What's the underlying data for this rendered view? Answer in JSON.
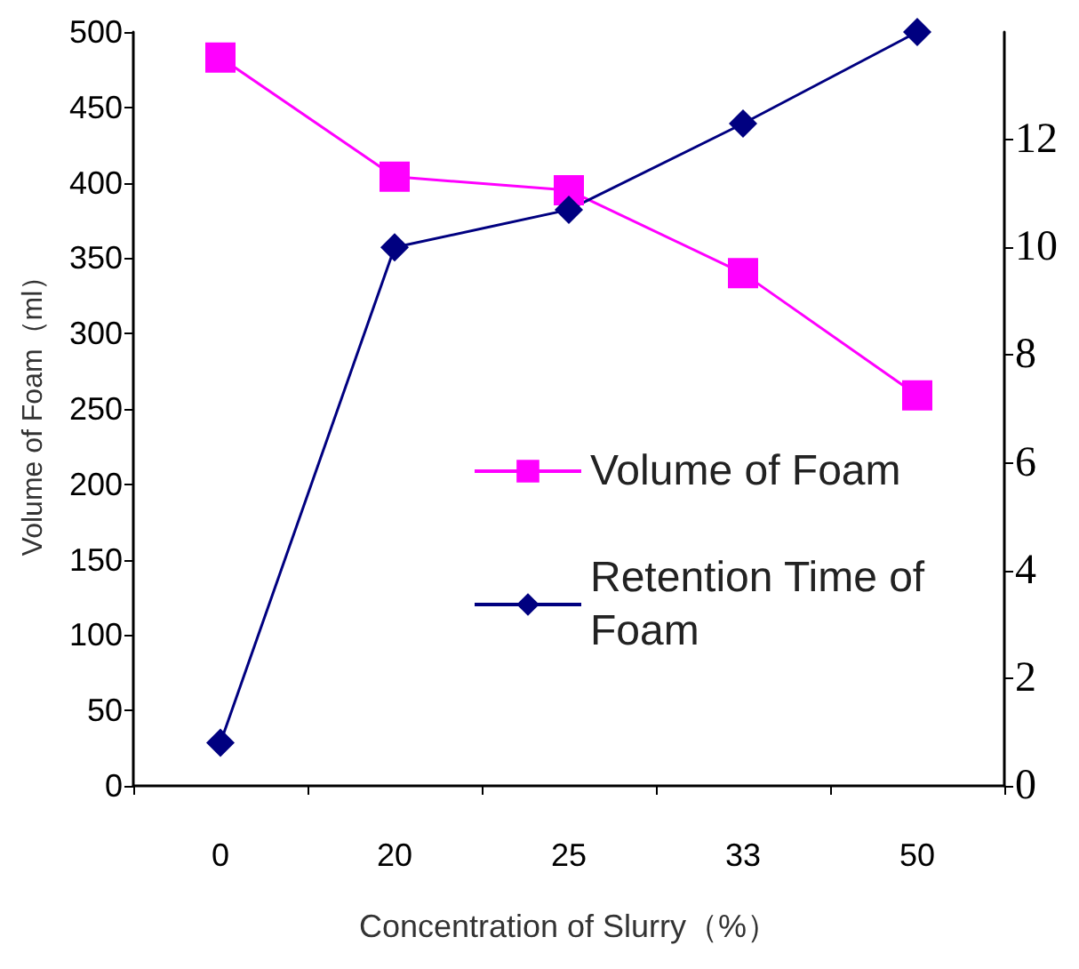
{
  "chart_data": {
    "type": "line",
    "xlabel": "Concentration of Slurry（%）",
    "ylabel": "Volume of Foam（ml）",
    "categories": [
      "0",
      "20",
      "25",
      "33",
      "50"
    ],
    "series": [
      {
        "name": "Volume of Foam",
        "color": "#ff00ff",
        "marker": "square",
        "values": [
          483,
          404,
          395,
          340,
          259
        ]
      },
      {
        "name": "Retention Time of Foam",
        "color": "#000080",
        "marker": "diamond",
        "axis": "y2",
        "values": [
          0.8,
          10,
          10.7,
          12.3,
          14
        ]
      }
    ],
    "ylim": [
      0,
      500
    ],
    "yticks": [
      0,
      50,
      100,
      150,
      200,
      250,
      300,
      350,
      400,
      450,
      500
    ],
    "y2lim": [
      0,
      14
    ],
    "y2ticks": [
      0,
      2,
      4,
      6,
      8,
      10,
      12
    ],
    "grid": false,
    "legend": "right"
  }
}
